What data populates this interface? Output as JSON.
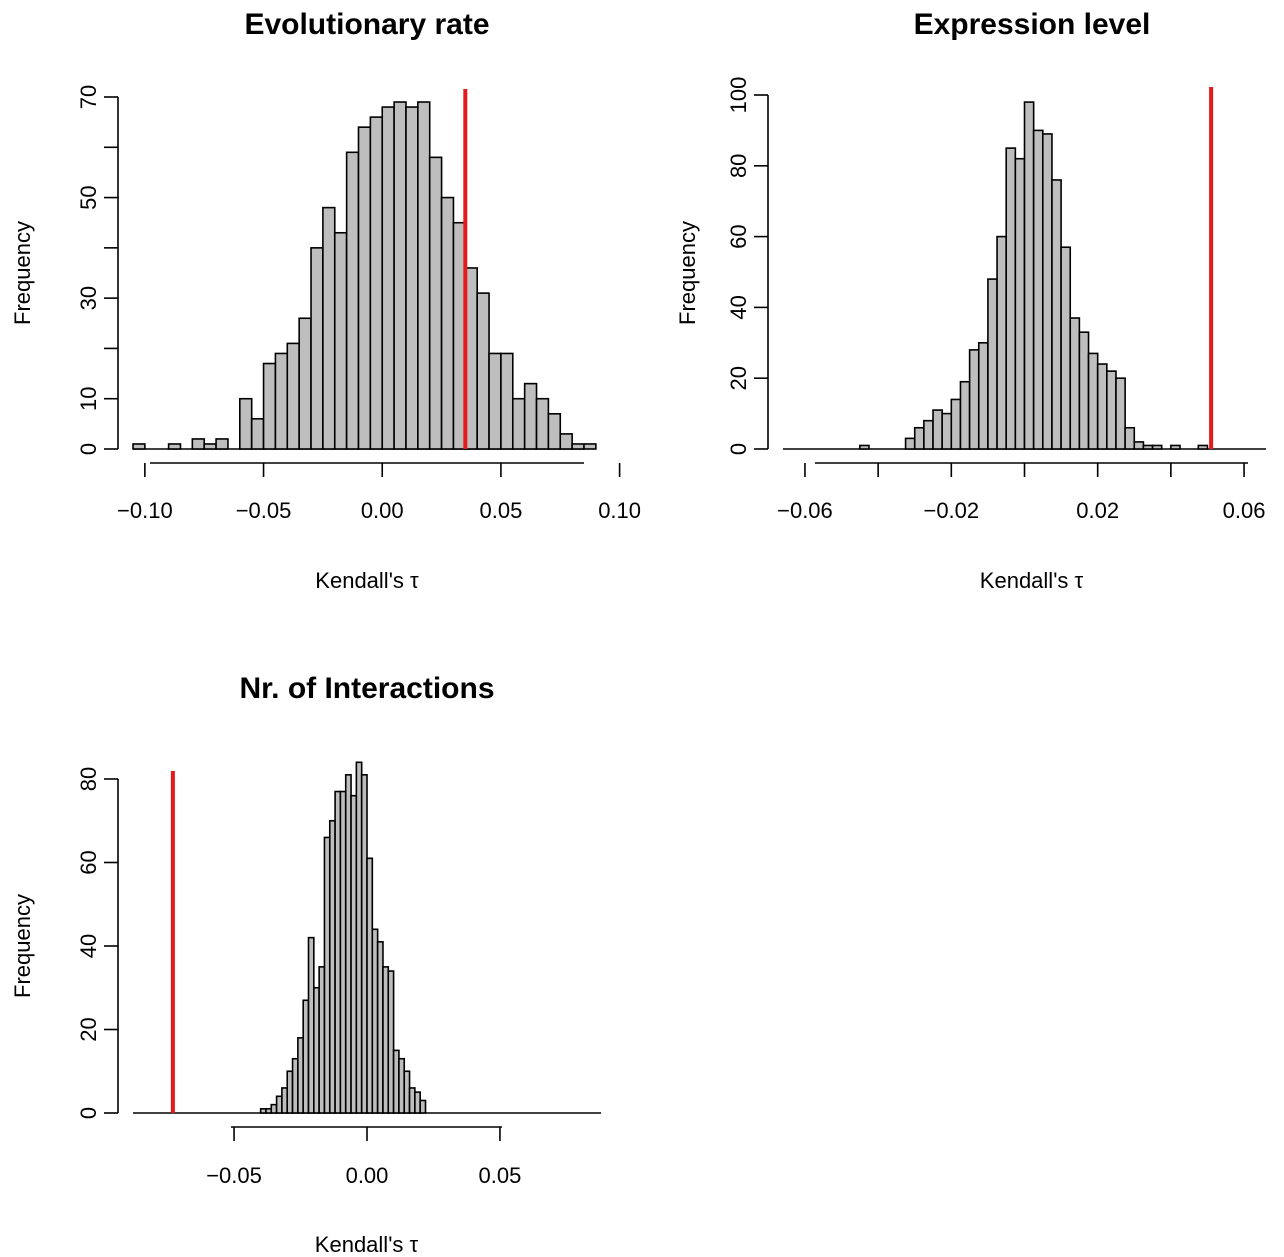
{
  "chart_data": [
    {
      "type": "bar",
      "title": "Evolutionary rate",
      "xlabel": "Kendall's τ",
      "ylabel": "Frequency",
      "xlim": [
        -0.105,
        0.085
      ],
      "ylim": [
        0,
        70
      ],
      "xticks": [
        -0.1,
        -0.05,
        0.0,
        0.05,
        0.1
      ],
      "xtick_labels": [
        "−0.10",
        "−0.05",
        "0.00",
        "0.05",
        "0.10"
      ],
      "yticks": [
        0,
        10,
        30,
        50,
        70
      ],
      "ytick_labels": [
        "0",
        "10",
        "30",
        "50",
        "70"
      ],
      "yminor": [
        20,
        40,
        60
      ],
      "bin_start": -0.105,
      "bin_width": 0.005,
      "values": [
        1,
        0,
        0,
        1,
        0,
        2,
        1,
        2,
        0,
        10,
        6,
        17,
        19,
        21,
        26,
        40,
        48,
        43,
        59,
        64,
        66,
        68,
        69,
        68,
        69,
        58,
        50,
        45,
        36,
        31,
        19,
        19,
        10,
        13,
        10,
        7,
        3,
        1,
        1
      ],
      "reference_line": 0.035,
      "grid": false
    },
    {
      "type": "bar",
      "title": "Expression level",
      "xlabel": "Kendall's τ",
      "ylabel": "Frequency",
      "xlim": [
        -0.066,
        0.066
      ],
      "ylim": [
        0,
        100
      ],
      "xticks": [
        -0.06,
        -0.04,
        -0.02,
        0.0,
        0.02,
        0.04,
        0.06
      ],
      "xtick_labels": [
        "−0.06",
        "",
        "−0.02",
        "",
        "0.02",
        "",
        "0.06"
      ],
      "yticks": [
        0,
        20,
        40,
        60,
        80,
        100
      ],
      "ytick_labels": [
        "0",
        "20",
        "40",
        "60",
        "80",
        "100"
      ],
      "yminor": [],
      "bin_start": -0.045,
      "bin_width": 0.0025,
      "values": [
        1,
        0,
        0,
        0,
        0,
        3,
        6,
        8,
        11,
        10,
        14,
        19,
        28,
        30,
        48,
        60,
        85,
        82,
        98,
        90,
        89,
        76,
        57,
        37,
        33,
        27,
        24,
        22,
        20,
        6,
        2,
        1,
        1,
        0,
        1,
        0,
        0,
        1
      ],
      "reference_line": 0.051,
      "grid": false
    },
    {
      "type": "bar",
      "title": "Nr. of Interactions",
      "xlabel": "Kendall's τ",
      "ylabel": "Frequency",
      "xlim": [
        -0.088,
        0.088
      ],
      "ylim": [
        0,
        80
      ],
      "xticks": [
        -0.05,
        0.0,
        0.05
      ],
      "xtick_labels": [
        "−0.05",
        "0.00",
        "0.05"
      ],
      "yticks": [
        0,
        20,
        40,
        60,
        80
      ],
      "ytick_labels": [
        "0",
        "20",
        "40",
        "60",
        "80"
      ],
      "yminor": [],
      "bin_start": -0.04,
      "bin_width": 0.002,
      "values": [
        1,
        1,
        2,
        4,
        6,
        10,
        13,
        18,
        27,
        42,
        30,
        35,
        66,
        70,
        77,
        77,
        81,
        76,
        84,
        81,
        61,
        44,
        41,
        35,
        34,
        15,
        13,
        10,
        6,
        5,
        3,
        0,
        0,
        0,
        0,
        0,
        0,
        0,
        0,
        0
      ],
      "reference_line": -0.073,
      "grid": false
    }
  ]
}
